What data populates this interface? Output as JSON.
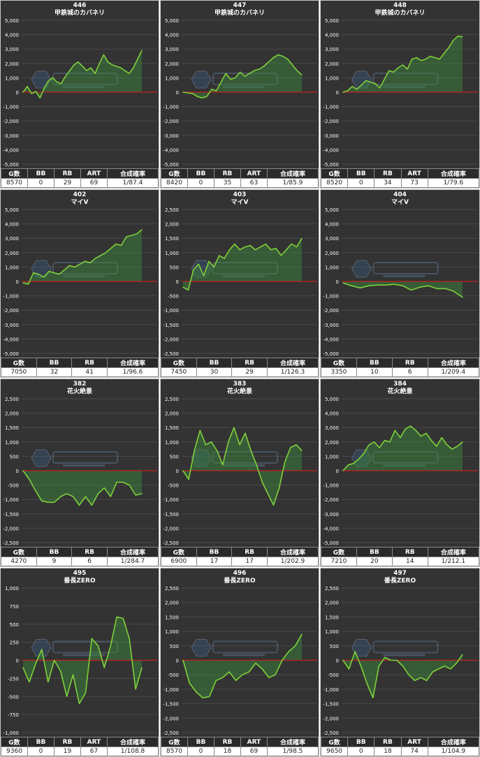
{
  "chart_data": [
    {
      "type": "area",
      "machine_no": "446",
      "title": "甲鉄城のカバネリ",
      "ylim": [
        -5000,
        5000
      ],
      "yticks": [
        "5,000",
        "4,000",
        "3,000",
        "2,000",
        "1,000",
        "0",
        "-1,000",
        "-2,000",
        "-3,000",
        "-4,000",
        "-5,000"
      ],
      "values": [
        0,
        400,
        -100,
        50,
        -400,
        300,
        800,
        1000,
        700,
        600,
        1100,
        1500,
        1900,
        2100,
        1800,
        1500,
        1700,
        1300,
        2000,
        2600,
        2100,
        1900,
        1800,
        1700,
        1500,
        1300,
        1700,
        2300,
        2900
      ],
      "stats": {
        "headers": [
          "G数",
          "BB",
          "RB",
          "ART",
          "合成確率"
        ],
        "values": [
          "8570",
          "0",
          "29",
          "69",
          "1/87.4"
        ]
      }
    },
    {
      "type": "area",
      "machine_no": "447",
      "title": "甲鉄城のカバネリ",
      "ylim": [
        -5000,
        5000
      ],
      "yticks": [
        "5,000",
        "4,000",
        "3,000",
        "2,000",
        "1,000",
        "0",
        "-1,000",
        "-2,000",
        "-3,000",
        "-4,000",
        "-5,000"
      ],
      "values": [
        0,
        -50,
        -100,
        -300,
        -400,
        -300,
        200,
        100,
        700,
        1300,
        900,
        1000,
        1400,
        1100,
        1300,
        1500,
        1600,
        1800,
        2100,
        2400,
        2600,
        2500,
        2300,
        1900,
        1500,
        1200
      ],
      "stats": {
        "headers": [
          "G数",
          "BB",
          "RB",
          "ART",
          "合成確率"
        ],
        "values": [
          "8420",
          "0",
          "35",
          "63",
          "1/85.9"
        ]
      }
    },
    {
      "type": "area",
      "machine_no": "448",
      "title": "甲鉄城のカバネリ",
      "ylim": [
        -5000,
        5000
      ],
      "yticks": [
        "5,000",
        "4,000",
        "3,000",
        "2,000",
        "1,000",
        "0",
        "-1,000",
        "-2,000",
        "-3,000",
        "-4,000",
        "-5,000"
      ],
      "values": [
        0,
        100,
        400,
        200,
        500,
        800,
        700,
        600,
        300,
        900,
        1500,
        1400,
        1700,
        1900,
        1600,
        2300,
        2400,
        2200,
        2300,
        2500,
        2400,
        2300,
        2700,
        3100,
        3600,
        3900,
        3850
      ],
      "stats": {
        "headers": [
          "G数",
          "BB",
          "RB",
          "ART",
          "合成確率"
        ],
        "values": [
          "8520",
          "0",
          "34",
          "73",
          "1/79.6"
        ]
      }
    },
    {
      "type": "area",
      "machine_no": "402",
      "title": "マイV",
      "ylim": [
        -5000,
        5000
      ],
      "yticks": [
        "5,000",
        "4,000",
        "3,000",
        "2,000",
        "1,000",
        "0",
        "-1,000",
        "-2,000",
        "-3,000",
        "-4,000",
        "-5,000"
      ],
      "values": [
        -100,
        -200,
        600,
        500,
        300,
        700,
        600,
        500,
        800,
        1100,
        1000,
        1200,
        1400,
        1300,
        1600,
        1800,
        2000,
        2300,
        2600,
        2500,
        3100,
        3200,
        3300,
        3600
      ],
      "stats": {
        "headers": [
          "G数",
          "BB",
          "RB",
          "合成確率"
        ],
        "values": [
          "7050",
          "32",
          "41",
          "1/96.6"
        ]
      }
    },
    {
      "type": "area",
      "machine_no": "403",
      "title": "マイV",
      "ylim": [
        -2500,
        2500
      ],
      "yticks": [
        "2,500",
        "2,000",
        "1,500",
        "1,000",
        "500",
        "0",
        "-500",
        "-1,000",
        "-1,500",
        "-2,000",
        "-2,500"
      ],
      "values": [
        -200,
        -300,
        400,
        600,
        200,
        700,
        500,
        900,
        800,
        1100,
        1300,
        1100,
        1200,
        1250,
        1100,
        1200,
        1300,
        1100,
        1150,
        900,
        1100,
        1300,
        1200,
        1500
      ],
      "stats": {
        "headers": [
          "G数",
          "BB",
          "RB",
          "合成確率"
        ],
        "values": [
          "7450",
          "30",
          "29",
          "1/126.3"
        ]
      }
    },
    {
      "type": "area",
      "machine_no": "404",
      "title": "マイV",
      "ylim": [
        -5000,
        5000
      ],
      "yticks": [
        "5,000",
        "4,000",
        "3,000",
        "2,000",
        "1,000",
        "0",
        "-1,000",
        "-2,000",
        "-3,000",
        "-4,000",
        "-5,000"
      ],
      "values": [
        -100,
        -300,
        -450,
        -300,
        -250,
        -250,
        -200,
        -300,
        -600,
        -400,
        -300,
        -500,
        -500,
        -700,
        -1100
      ],
      "stats": {
        "headers": [
          "G数",
          "BB",
          "RB",
          "合成確率"
        ],
        "values": [
          "3350",
          "10",
          "6",
          "1/209.4"
        ]
      }
    },
    {
      "type": "area",
      "machine_no": "382",
      "title": "花火絶景",
      "ylim": [
        -2500,
        2500
      ],
      "yticks": [
        "2,500",
        "2,000",
        "1,500",
        "1,000",
        "500",
        "0",
        "-500",
        "-1,000",
        "-1,500",
        "-2,000",
        "-2,500"
      ],
      "values": [
        0,
        -300,
        -700,
        -1050,
        -1100,
        -1100,
        -900,
        -800,
        -900,
        -1200,
        -900,
        -1200,
        -800,
        -600,
        -900,
        -400,
        -400,
        -500,
        -850,
        -800
      ],
      "stats": {
        "headers": [
          "G数",
          "BB",
          "RB",
          "合成確率"
        ],
        "values": [
          "4270",
          "9",
          "6",
          "1/284.7"
        ]
      }
    },
    {
      "type": "area",
      "machine_no": "383",
      "title": "花火絶景",
      "ylim": [
        -2500,
        2500
      ],
      "yticks": [
        "2,500",
        "2,000",
        "1,500",
        "1,000",
        "500",
        "0",
        "-500",
        "-1,000",
        "-1,500",
        "-2,000",
        "-2,500"
      ],
      "values": [
        0,
        -300,
        700,
        1400,
        900,
        1000,
        700,
        200,
        1000,
        1500,
        900,
        1300,
        700,
        200,
        -400,
        -800,
        -1200,
        -600,
        300,
        800,
        900,
        700
      ],
      "stats": {
        "headers": [
          "G数",
          "BB",
          "RB",
          "合成確率"
        ],
        "values": [
          "6900",
          "17",
          "17",
          "1/202.9"
        ]
      }
    },
    {
      "type": "area",
      "machine_no": "384",
      "title": "花火絶景",
      "ylim": [
        -5000,
        5000
      ],
      "yticks": [
        "5,000",
        "4,000",
        "3,000",
        "2,000",
        "1,000",
        "0",
        "-1,000",
        "-2,000",
        "-3,000",
        "-4,000",
        "-5,000"
      ],
      "values": [
        0,
        400,
        500,
        800,
        1200,
        1800,
        2000,
        1600,
        2100,
        2000,
        2800,
        2300,
        2900,
        3100,
        2800,
        2400,
        2600,
        2100,
        1700,
        2300,
        1800,
        1500,
        1700,
        2000
      ],
      "stats": {
        "headers": [
          "G数",
          "BB",
          "RB",
          "合成確率"
        ],
        "values": [
          "7210",
          "20",
          "14",
          "1/212.1"
        ]
      }
    },
    {
      "type": "area",
      "machine_no": "495",
      "title": "番長ZERO",
      "ylim": [
        -1000,
        1000
      ],
      "yticks": [
        "1,000",
        "750",
        "500",
        "250",
        "0",
        "-250",
        "-500",
        "-750",
        "-1,000"
      ],
      "values": [
        -100,
        -300,
        -50,
        150,
        -300,
        0,
        -150,
        -500,
        -200,
        -600,
        -450,
        300,
        200,
        -100,
        200,
        600,
        580,
        300,
        -400,
        -100
      ],
      "stats": {
        "headers": [
          "G数",
          "BB",
          "RB",
          "ART",
          "合成確率"
        ],
        "values": [
          "9360",
          "0",
          "19",
          "67",
          "1/108.8"
        ]
      }
    },
    {
      "type": "area",
      "machine_no": "496",
      "title": "番長ZERO",
      "ylim": [
        -2500,
        2500
      ],
      "yticks": [
        "2,500",
        "2,000",
        "1,500",
        "1,000",
        "500",
        "0",
        "-500",
        "-1,000",
        "-1,500",
        "-2,000",
        "-2,500"
      ],
      "values": [
        0,
        -800,
        -1100,
        -1300,
        -1250,
        -700,
        -600,
        -400,
        -700,
        -500,
        -400,
        -100,
        -300,
        -600,
        -500,
        0,
        300,
        500,
        900
      ],
      "stats": {
        "headers": [
          "G数",
          "BB",
          "RB",
          "ART",
          "合成確率"
        ],
        "values": [
          "8570",
          "0",
          "18",
          "69",
          "1/98.5"
        ]
      }
    },
    {
      "type": "area",
      "machine_no": "497",
      "title": "番長ZERO",
      "ylim": [
        -2500,
        2500
      ],
      "yticks": [
        "2,500",
        "2,000",
        "1,500",
        "1,000",
        "500",
        "0",
        "-500",
        "-1,000",
        "-1,500",
        "-2,000",
        "-2,500"
      ],
      "values": [
        0,
        -300,
        300,
        -200,
        -800,
        -1300,
        -200,
        100,
        0,
        0,
        -200,
        -500,
        -700,
        -600,
        -700,
        -400,
        -300,
        -200,
        -300,
        -100,
        200
      ],
      "stats": {
        "headers": [
          "G数",
          "BB",
          "RB",
          "ART",
          "合成確率"
        ],
        "values": [
          "9650",
          "0",
          "18",
          "74",
          "1/104.9"
        ]
      }
    }
  ],
  "colors": {
    "panel_bg": "#333333",
    "line": "#7fd13b",
    "fill": "#3c8c3c",
    "zero_line": "#c02020",
    "grid": "#4a4a4a",
    "text": "#ffffff",
    "header_bg": "#2a2a2a"
  }
}
